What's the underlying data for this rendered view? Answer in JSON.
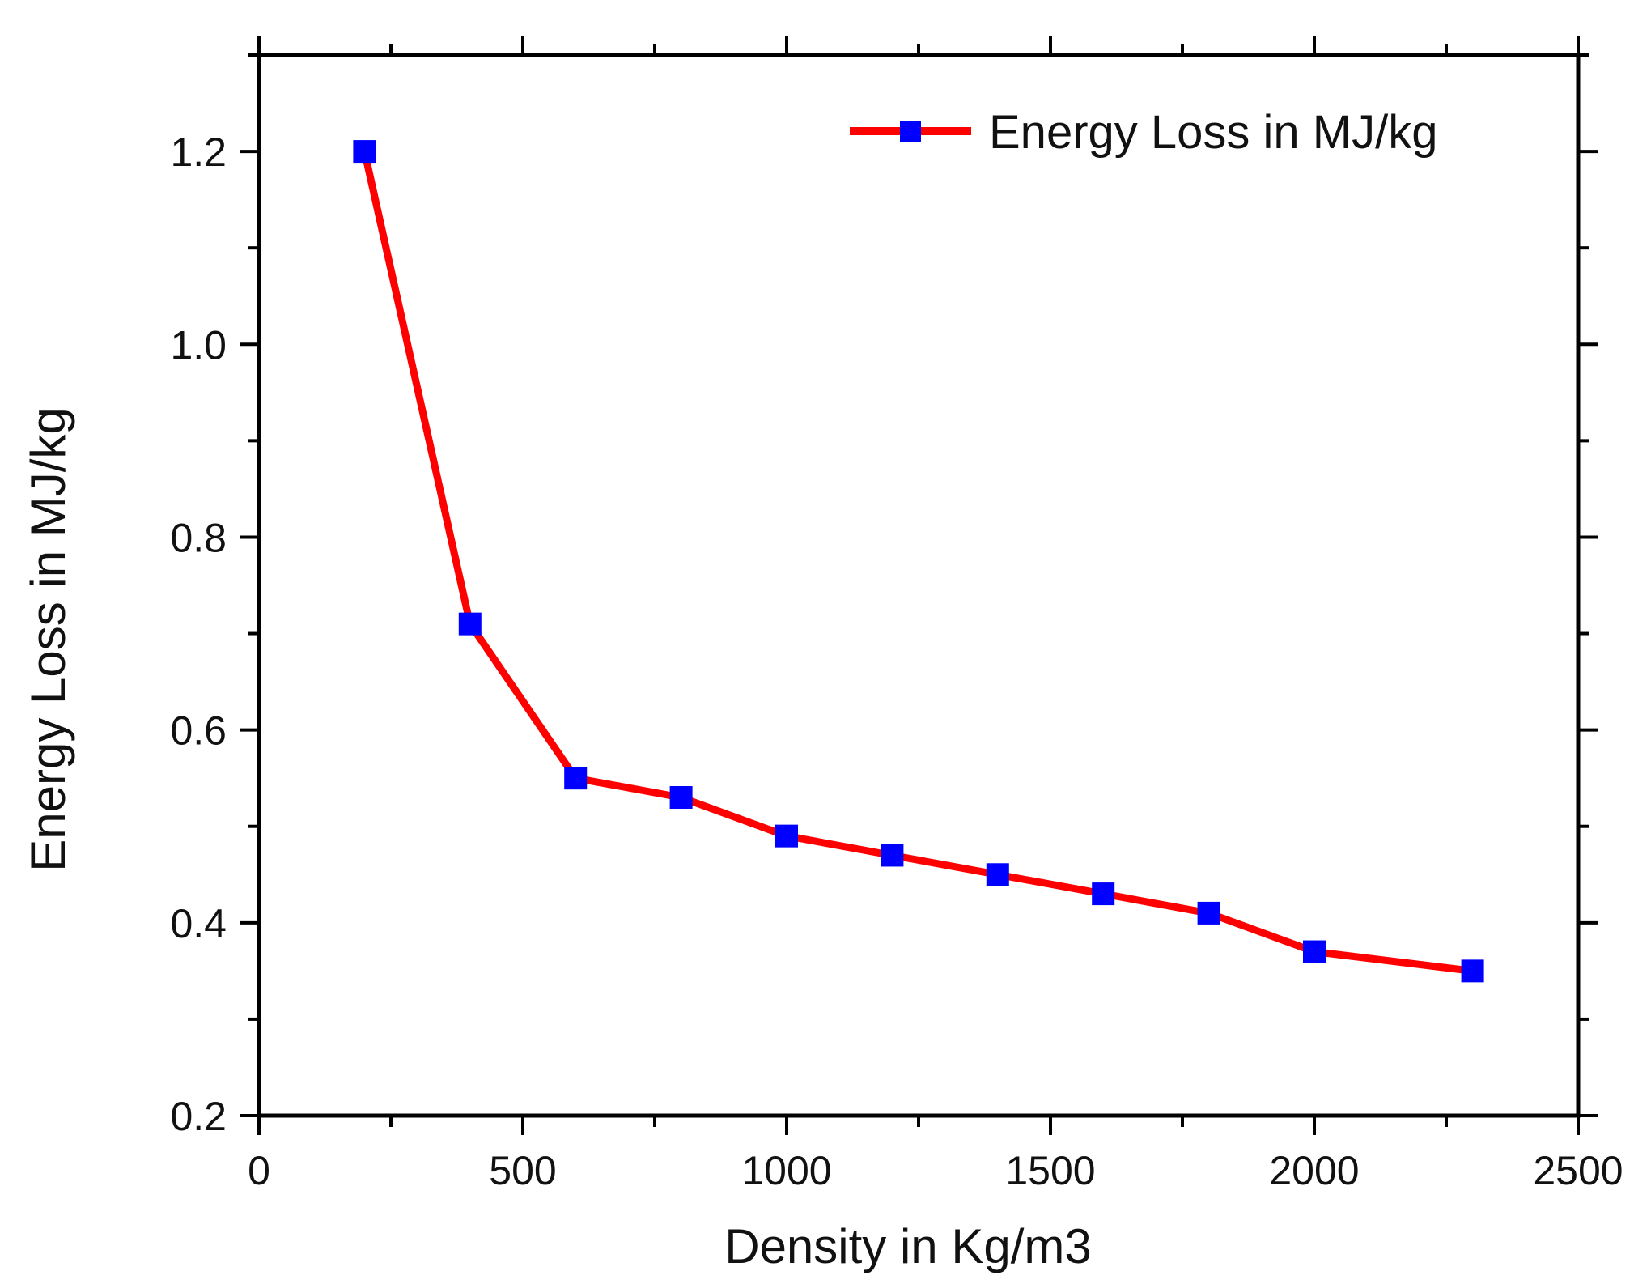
{
  "chart_data": {
    "type": "line",
    "title": "",
    "xlabel": "Density in Kg/m3",
    "ylabel": "Energy Loss in MJ/kg",
    "xlim": [
      0,
      2500
    ],
    "ylim": [
      0.2,
      1.3
    ],
    "xticks": [
      0,
      500,
      1000,
      1500,
      2000,
      2500
    ],
    "xtick_labels": [
      "0",
      "500",
      "1000",
      "1500",
      "2000",
      "2500"
    ],
    "yticks": [
      0.2,
      0.4,
      0.6,
      0.8,
      1.0,
      1.2
    ],
    "ytick_labels": [
      "0.2",
      "0.4",
      "0.6",
      "0.8",
      "1.0",
      "1.2"
    ],
    "x_minor_step": 250,
    "y_minor_step": 0.1,
    "grid": false,
    "legend_position": "top-right",
    "series": [
      {
        "name": "Energy Loss in MJ/kg",
        "line_color": "#ff0000",
        "marker_color": "#0000ff",
        "marker": "square",
        "x": [
          200,
          400,
          600,
          800,
          1000,
          1200,
          1400,
          1600,
          1800,
          2000,
          2300
        ],
        "y": [
          1.2,
          0.71,
          0.55,
          0.53,
          0.49,
          0.47,
          0.45,
          0.43,
          0.41,
          0.37,
          0.35
        ]
      }
    ]
  }
}
